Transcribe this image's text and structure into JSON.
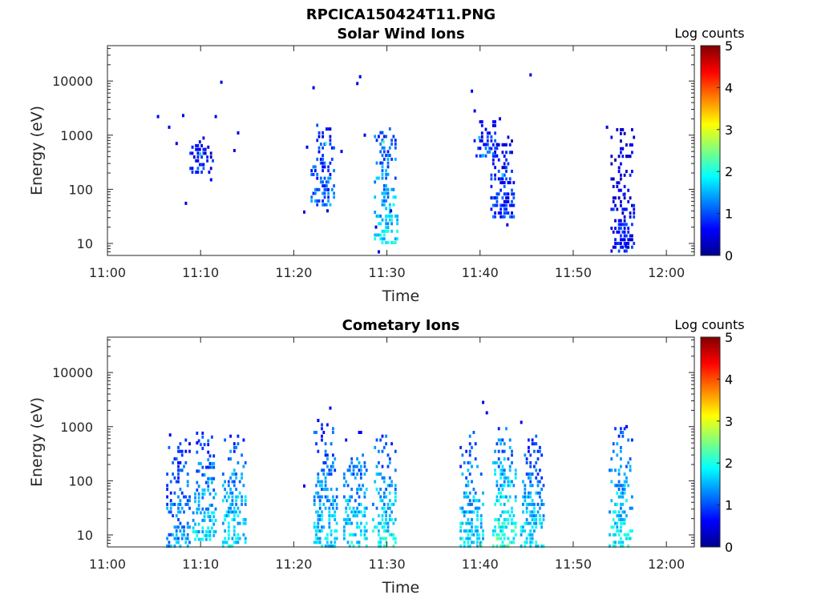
{
  "figure": {
    "title": "RPCICA150424T11.PNG"
  },
  "chart_data": [
    {
      "type": "heatmap",
      "title": "Solar Wind Ions",
      "xlabel": "Time",
      "ylabel": "Energy (eV)",
      "xlim_minutes": [
        0,
        63
      ],
      "ylim": [
        6,
        45000
      ],
      "y_scale": "log",
      "x_ticks": [
        "11:00",
        "11:10",
        "11:20",
        "11:30",
        "11:40",
        "11:50",
        "12:00"
      ],
      "y_ticks": [
        "10",
        "100",
        "1000",
        "10000"
      ],
      "colorbar": {
        "label": "Log counts",
        "range": [
          0,
          5
        ],
        "ticks": [
          "0",
          "1",
          "2",
          "3",
          "4",
          "5"
        ]
      },
      "clusters": [
        {
          "t": 10.0,
          "e_min": 200,
          "e_max": 1100,
          "level": 0.8
        },
        {
          "t": 23.0,
          "e_min": 50,
          "e_max": 1800,
          "level": 1.2
        },
        {
          "t": 29.8,
          "e_min": 10,
          "e_max": 1500,
          "level": 1.8
        },
        {
          "t": 40.5,
          "e_min": 400,
          "e_max": 1800,
          "level": 1.0
        },
        {
          "t": 42.3,
          "e_min": 30,
          "e_max": 1600,
          "level": 0.9
        },
        {
          "t": 55.2,
          "e_min": 7,
          "e_max": 1300,
          "level": 0.7
        }
      ],
      "points": [
        [
          5.3,
          2200,
          0.5
        ],
        [
          6.5,
          1400,
          0.5
        ],
        [
          7.3,
          700,
          0.5
        ],
        [
          8.0,
          2300,
          0.5
        ],
        [
          8.3,
          55,
          0.5
        ],
        [
          9.0,
          600,
          0.8
        ],
        [
          9.8,
          450,
          1.6
        ],
        [
          10.7,
          600,
          0.6
        ],
        [
          11.0,
          150,
          0.5
        ],
        [
          11.5,
          2200,
          0.5
        ],
        [
          12.1,
          9500,
          0.5
        ],
        [
          13.5,
          520,
          0.5
        ],
        [
          13.9,
          1100,
          0.5
        ],
        [
          21.0,
          38,
          0.6
        ],
        [
          21.3,
          600,
          0.5
        ],
        [
          22.0,
          7500,
          0.5
        ],
        [
          22.6,
          1100,
          1.0
        ],
        [
          23.3,
          700,
          2.0
        ],
        [
          23.5,
          40,
          0.5
        ],
        [
          25.0,
          500,
          0.5
        ],
        [
          26.7,
          9000,
          0.5
        ],
        [
          27.0,
          12000,
          0.5
        ],
        [
          27.5,
          1000,
          0.5
        ],
        [
          28.7,
          20,
          0.5
        ],
        [
          29.0,
          7,
          0.5
        ],
        [
          29.5,
          750,
          2.2
        ],
        [
          30.3,
          40,
          0.5
        ],
        [
          39.0,
          6500,
          0.5
        ],
        [
          39.3,
          2800,
          0.5
        ],
        [
          39.8,
          900,
          1.6
        ],
        [
          40.2,
          420,
          1.5
        ],
        [
          41.3,
          450,
          1.2
        ],
        [
          42.0,
          2000,
          0.5
        ],
        [
          42.3,
          180,
          1.7
        ],
        [
          42.8,
          22,
          0.5
        ],
        [
          45.3,
          13000,
          0.5
        ],
        [
          53.5,
          1400,
          0.5
        ],
        [
          54.8,
          250,
          0.5
        ],
        [
          55.3,
          80,
          0.8
        ],
        [
          55.5,
          9,
          0.5
        ]
      ]
    },
    {
      "type": "heatmap",
      "title": "Cometary Ions",
      "xlabel": "Time",
      "ylabel": "Energy (eV)",
      "xlim_minutes": [
        0,
        63
      ],
      "ylim": [
        6,
        45000
      ],
      "y_scale": "log",
      "x_ticks": [
        "11:00",
        "11:10",
        "11:20",
        "11:30",
        "11:40",
        "11:50",
        "12:00"
      ],
      "y_ticks": [
        "10",
        "100",
        "1000",
        "10000"
      ],
      "colorbar": {
        "label": "Log counts",
        "range": [
          0,
          5
        ],
        "ticks": [
          "0",
          "1",
          "2",
          "3",
          "4",
          "5"
        ]
      },
      "clusters": [
        {
          "t": 7.5,
          "e_min": 6,
          "e_max": 700,
          "level": 1.4
        },
        {
          "t": 10.3,
          "e_min": 8,
          "e_max": 800,
          "level": 1.7
        },
        {
          "t": 13.5,
          "e_min": 6,
          "e_max": 700,
          "level": 1.8
        },
        {
          "t": 23.3,
          "e_min": 6,
          "e_max": 1200,
          "level": 1.7
        },
        {
          "t": 26.5,
          "e_min": 6,
          "e_max": 800,
          "level": 1.8
        },
        {
          "t": 29.6,
          "e_min": 6,
          "e_max": 700,
          "level": 1.9
        },
        {
          "t": 39.0,
          "e_min": 6,
          "e_max": 800,
          "level": 1.8
        },
        {
          "t": 42.5,
          "e_min": 6,
          "e_max": 900,
          "level": 2.1
        },
        {
          "t": 45.5,
          "e_min": 6,
          "e_max": 700,
          "level": 1.8
        },
        {
          "t": 55.0,
          "e_min": 6,
          "e_max": 900,
          "level": 1.9
        }
      ],
      "points": [
        [
          6.6,
          700,
          0.5
        ],
        [
          9.5,
          500,
          0.5
        ],
        [
          21.0,
          80,
          0.5
        ],
        [
          22.5,
          1300,
          0.5
        ],
        [
          23.8,
          2200,
          0.5
        ],
        [
          40.2,
          2800,
          0.5
        ],
        [
          40.6,
          1800,
          0.5
        ],
        [
          44.3,
          1200,
          0.5
        ],
        [
          55.6,
          1000,
          0.5
        ]
      ]
    }
  ]
}
